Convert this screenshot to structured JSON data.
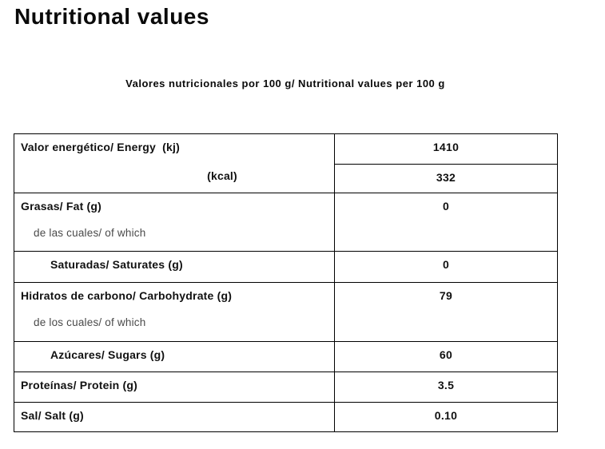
{
  "page": {
    "title": "Nutritional values",
    "subtitle": "Valores nutricionales por 100 g/ Nutritional values per 100 g"
  },
  "table": {
    "energy": {
      "label": "Valor energético/ Energy  (kj)",
      "kcal_label": "(kcal)",
      "kj_value": "1410",
      "kcal_value": "332"
    },
    "fat": {
      "label": "Grasas/ Fat (g)",
      "sub_label": "de las cuales/ of which",
      "value": "0"
    },
    "saturates": {
      "label": "Saturadas/ Saturates (g)",
      "value": "0"
    },
    "carbohydrate": {
      "label": "Hidratos de carbono/ Carbohydrate (g)",
      "sub_label": "de los cuales/ of which",
      "value": "79"
    },
    "sugars": {
      "label": "Azúcares/ Sugars (g)",
      "value": "60"
    },
    "protein": {
      "label": "Proteínas/ Protein (g)",
      "value": "3.5"
    },
    "salt": {
      "label": "Sal/ Salt (g)",
      "value": "0.10"
    }
  },
  "colors": {
    "text": "#0a0a0a",
    "sub_text": "#4a4a4a",
    "border": "#000000",
    "background": "#ffffff"
  }
}
